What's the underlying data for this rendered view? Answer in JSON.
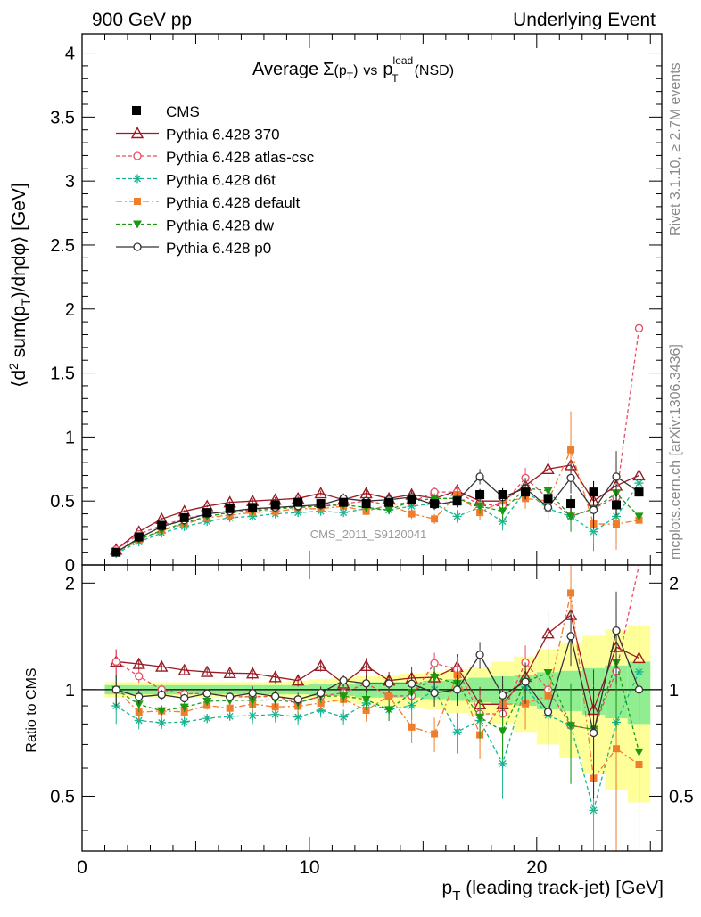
{
  "header": {
    "left": "900 GeV pp",
    "right": "Underlying Event"
  },
  "side_labels": {
    "top": "Rivet 3.1.10, ≥ 2.7M events",
    "bottom": "mcplots.cern.ch [arXiv:1306.3436]"
  },
  "watermark": "CMS_2011_S9120041",
  "chart_data": {
    "type": "scatter",
    "title": "Average Σ(p_T) vs p_T^lead (NSD)",
    "title_parts": {
      "average": "Average",
      "sigma": "Σ",
      "pt_open": "(p",
      "t_sub": "T",
      "pt_close": ")",
      "vs": "vs",
      "p": "p",
      "lead_sup": "lead",
      "t_sub2": "T",
      "nsd": "(NSD)"
    },
    "ylabel": "⟨d² sum(p_T)/dηdφ⟩ [GeV]",
    "ylabel_parts": {
      "open": "⟨d",
      "two": "2",
      "mid": " sum(p",
      "t": "T",
      "close": ")/dηdφ⟩ [GeV]"
    },
    "ratio_ylabel": "Ratio to CMS",
    "xlabel": "p_T (leading track-jet) [GeV]",
    "xlabel_parts": {
      "p": "p",
      "t": "T",
      "rest": " (leading track-jet) [GeV]"
    },
    "xlim": [
      0,
      25.5
    ],
    "ylim": [
      0,
      4.15
    ],
    "ratio_ylim": [
      0.35,
      2.25
    ],
    "x_ticks": [
      "0",
      "10",
      "20"
    ],
    "y_ticks": [
      "0",
      "0.5",
      "1",
      "1.5",
      "2",
      "2.5",
      "3",
      "3.5",
      "4"
    ],
    "ratio_ticks": [
      "0.5",
      "1",
      "2"
    ],
    "ratio_ticks_right": [
      "0.5",
      "1",
      "2"
    ],
    "legend_position": "top-left",
    "x": [
      1.5,
      2.5,
      3.5,
      4.5,
      5.5,
      6.5,
      7.5,
      8.5,
      9.5,
      10.5,
      11.5,
      12.5,
      13.5,
      14.5,
      15.5,
      16.5,
      17.5,
      18.5,
      19.5,
      20.5,
      21.5,
      22.5,
      23.5,
      24.5
    ],
    "data_series": {
      "name": "CMS",
      "values": [
        0.1,
        0.22,
        0.31,
        0.37,
        0.41,
        0.44,
        0.45,
        0.47,
        0.49,
        0.48,
        0.49,
        0.48,
        0.49,
        0.51,
        0.48,
        0.5,
        0.55,
        0.55,
        0.57,
        0.52,
        0.48,
        0.57,
        0.47,
        0.57
      ],
      "band_inner": [
        0.03,
        0.03,
        0.03,
        0.03,
        0.03,
        0.03,
        0.03,
        0.03,
        0.03,
        0.04,
        0.04,
        0.05,
        0.05,
        0.05,
        0.06,
        0.07,
        0.08,
        0.09,
        0.1,
        0.12,
        0.13,
        0.15,
        0.17,
        0.2
      ],
      "band_outer": [
        0.05,
        0.05,
        0.05,
        0.05,
        0.05,
        0.05,
        0.05,
        0.05,
        0.06,
        0.07,
        0.08,
        0.09,
        0.1,
        0.11,
        0.12,
        0.14,
        0.16,
        0.2,
        0.24,
        0.3,
        0.36,
        0.42,
        0.48,
        0.52
      ]
    },
    "series": [
      {
        "name": "Pythia 6.428 370",
        "color": "#9a1b25",
        "marker": "triangle-open",
        "dash": "",
        "values": [
          0.12,
          0.26,
          0.36,
          0.42,
          0.46,
          0.49,
          0.5,
          0.51,
          0.52,
          0.56,
          0.51,
          0.56,
          0.52,
          0.55,
          0.52,
          0.58,
          0.5,
          0.5,
          0.62,
          0.75,
          0.78,
          0.5,
          0.62,
          0.7
        ],
        "err": [
          0.01,
          0.01,
          0.01,
          0.01,
          0.01,
          0.01,
          0.02,
          0.02,
          0.02,
          0.02,
          0.02,
          0.03,
          0.03,
          0.04,
          0.04,
          0.05,
          0.06,
          0.07,
          0.08,
          0.12,
          0.15,
          0.15,
          0.2,
          0.5
        ]
      },
      {
        "name": "Pythia 6.428 atlas-csc",
        "color": "#ea4a62",
        "marker": "circle-open",
        "dash": "4 3",
        "values": [
          0.12,
          0.24,
          0.31,
          0.36,
          0.4,
          0.42,
          0.43,
          0.45,
          0.45,
          0.46,
          0.48,
          0.5,
          0.47,
          0.49,
          0.57,
          0.57,
          0.47,
          0.47,
          0.68,
          0.52,
          0.38,
          0.44,
          0.53,
          1.85
        ],
        "err": [
          0.01,
          0.01,
          0.01,
          0.01,
          0.01,
          0.01,
          0.02,
          0.02,
          0.02,
          0.02,
          0.02,
          0.03,
          0.03,
          0.04,
          0.04,
          0.05,
          0.06,
          0.07,
          0.08,
          0.1,
          0.12,
          0.15,
          0.2,
          0.3
        ]
      },
      {
        "name": "Pythia 6.428 d6t",
        "color": "#17b591",
        "marker": "asterisk",
        "dash": "4 3",
        "values": [
          0.09,
          0.18,
          0.25,
          0.3,
          0.34,
          0.37,
          0.38,
          0.4,
          0.41,
          0.42,
          0.41,
          0.44,
          0.43,
          0.46,
          0.48,
          0.38,
          0.45,
          0.34,
          0.58,
          0.44,
          0.38,
          0.26,
          0.38,
          0.64
        ],
        "err": [
          0.01,
          0.01,
          0.01,
          0.01,
          0.01,
          0.01,
          0.02,
          0.02,
          0.02,
          0.02,
          0.02,
          0.03,
          0.03,
          0.04,
          0.04,
          0.05,
          0.06,
          0.07,
          0.08,
          0.1,
          0.12,
          0.15,
          0.2,
          0.3
        ]
      },
      {
        "name": "Pythia 6.428 default",
        "color": "#ef7d2c",
        "marker": "square",
        "dash": "7 3 2 3",
        "values": [
          0.1,
          0.19,
          0.27,
          0.32,
          0.37,
          0.39,
          0.41,
          0.42,
          0.44,
          0.44,
          0.46,
          0.42,
          0.47,
          0.4,
          0.36,
          0.55,
          0.41,
          0.5,
          0.52,
          0.5,
          0.9,
          0.32,
          0.32,
          0.35
        ],
        "err": [
          0.01,
          0.01,
          0.01,
          0.01,
          0.01,
          0.01,
          0.02,
          0.02,
          0.02,
          0.02,
          0.02,
          0.03,
          0.03,
          0.04,
          0.04,
          0.05,
          0.06,
          0.07,
          0.08,
          0.1,
          0.3,
          0.15,
          0.2,
          0.3
        ]
      },
      {
        "name": "Pythia 6.428 dw",
        "color": "#1a9a12",
        "marker": "triangle-down",
        "dash": "4 3",
        "values": [
          0.1,
          0.2,
          0.27,
          0.33,
          0.38,
          0.41,
          0.42,
          0.44,
          0.45,
          0.46,
          0.47,
          0.45,
          0.43,
          0.5,
          0.52,
          0.52,
          0.46,
          0.42,
          0.6,
          0.58,
          0.38,
          0.44,
          0.56,
          0.38
        ],
        "err": [
          0.01,
          0.01,
          0.01,
          0.01,
          0.01,
          0.01,
          0.02,
          0.02,
          0.02,
          0.02,
          0.02,
          0.03,
          0.03,
          0.04,
          0.04,
          0.05,
          0.06,
          0.07,
          0.08,
          0.1,
          0.12,
          0.15,
          0.2,
          0.3
        ]
      },
      {
        "name": "Pythia 6.428 p0",
        "color": "#333333",
        "marker": "circle-open",
        "dash": "",
        "values": [
          0.1,
          0.21,
          0.3,
          0.35,
          0.4,
          0.42,
          0.44,
          0.45,
          0.46,
          0.47,
          0.52,
          0.5,
          0.51,
          0.53,
          0.47,
          0.5,
          0.69,
          0.53,
          0.6,
          0.45,
          0.68,
          0.43,
          0.69,
          0.57
        ],
        "err": [
          0.01,
          0.01,
          0.01,
          0.01,
          0.01,
          0.01,
          0.02,
          0.02,
          0.02,
          0.02,
          0.02,
          0.03,
          0.03,
          0.04,
          0.04,
          0.05,
          0.06,
          0.07,
          0.08,
          0.1,
          0.12,
          0.15,
          0.2,
          0.3
        ]
      }
    ]
  }
}
